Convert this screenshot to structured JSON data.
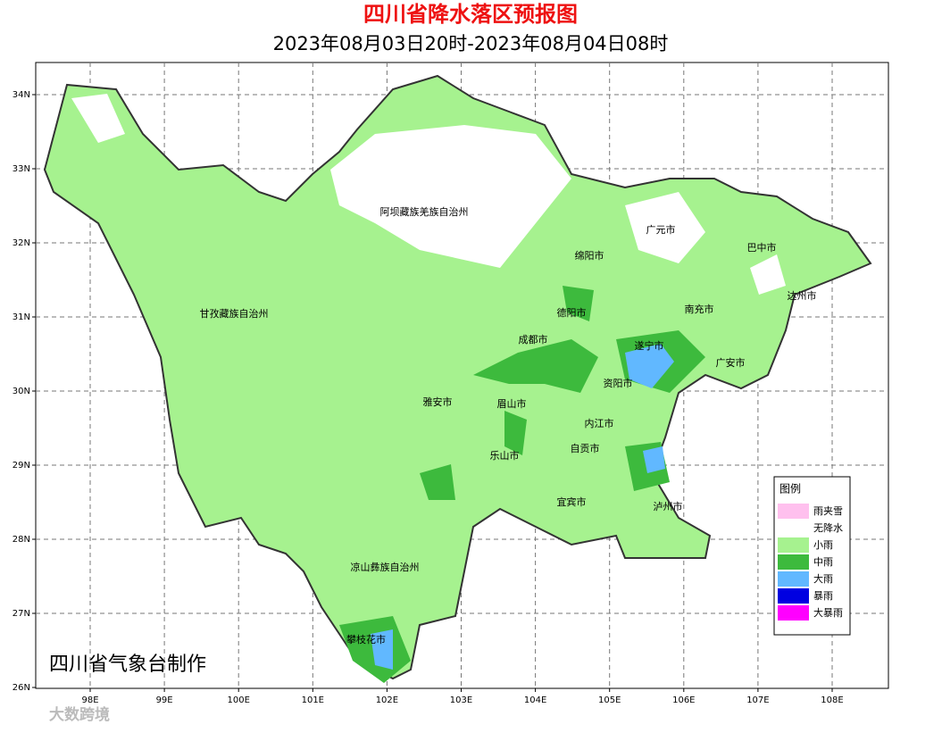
{
  "header": {
    "title": "四川省降水落区预报图",
    "subtitle": "2023年08月03日20时-2023年08月04日08时"
  },
  "map": {
    "lat_ticks": [
      "34N",
      "33N",
      "32N",
      "31N",
      "30N",
      "29N",
      "28N",
      "27N",
      "26N"
    ],
    "lon_ticks": [
      "98E",
      "99E",
      "100E",
      "101E",
      "102E",
      "103E",
      "104E",
      "105E",
      "106E",
      "107E",
      "108E"
    ],
    "regions": [
      "阿坝藏族羌族自治州",
      "广元市",
      "巴中市",
      "绵阳市",
      "德阳市",
      "南充市",
      "达州市",
      "甘孜藏族自治州",
      "成都市",
      "遂宁市",
      "广安市",
      "资阳市",
      "雅安市",
      "眉山市",
      "内江市",
      "自贡市",
      "乐山市",
      "宜宾市",
      "泸州市",
      "凉山彝族自治州",
      "攀枝花市"
    ]
  },
  "legend": {
    "title": "图例",
    "items": [
      "雨夹雪",
      "无降水",
      "小雨",
      "中雨",
      "大雨",
      "暴雨",
      "大暴雨"
    ]
  },
  "credit": "四川省气象台制作",
  "watermark": "大数跨境"
}
